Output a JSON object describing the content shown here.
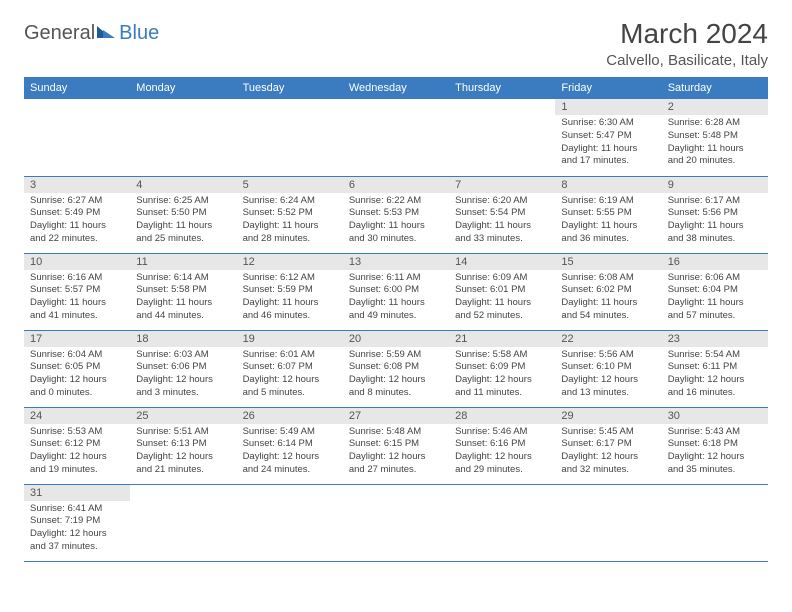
{
  "logo": {
    "text1": "General",
    "text2": "Blue"
  },
  "title": "March 2024",
  "subtitle": "Calvello, Basilicate, Italy",
  "day_headers": [
    "Sunday",
    "Monday",
    "Tuesday",
    "Wednesday",
    "Thursday",
    "Friday",
    "Saturday"
  ],
  "colors": {
    "header_bg": "#3b7bbf",
    "header_text": "#ffffff",
    "daynum_bg": "#e7e7e7",
    "cell_border": "#3b7bbf",
    "body_text": "#444444",
    "title_text": "#444444"
  },
  "weeks": [
    [
      null,
      null,
      null,
      null,
      null,
      {
        "n": "1",
        "sunrise": "Sunrise: 6:30 AM",
        "sunset": "Sunset: 5:47 PM",
        "daylight": "Daylight: 11 hours and 17 minutes."
      },
      {
        "n": "2",
        "sunrise": "Sunrise: 6:28 AM",
        "sunset": "Sunset: 5:48 PM",
        "daylight": "Daylight: 11 hours and 20 minutes."
      }
    ],
    [
      {
        "n": "3",
        "sunrise": "Sunrise: 6:27 AM",
        "sunset": "Sunset: 5:49 PM",
        "daylight": "Daylight: 11 hours and 22 minutes."
      },
      {
        "n": "4",
        "sunrise": "Sunrise: 6:25 AM",
        "sunset": "Sunset: 5:50 PM",
        "daylight": "Daylight: 11 hours and 25 minutes."
      },
      {
        "n": "5",
        "sunrise": "Sunrise: 6:24 AM",
        "sunset": "Sunset: 5:52 PM",
        "daylight": "Daylight: 11 hours and 28 minutes."
      },
      {
        "n": "6",
        "sunrise": "Sunrise: 6:22 AM",
        "sunset": "Sunset: 5:53 PM",
        "daylight": "Daylight: 11 hours and 30 minutes."
      },
      {
        "n": "7",
        "sunrise": "Sunrise: 6:20 AM",
        "sunset": "Sunset: 5:54 PM",
        "daylight": "Daylight: 11 hours and 33 minutes."
      },
      {
        "n": "8",
        "sunrise": "Sunrise: 6:19 AM",
        "sunset": "Sunset: 5:55 PM",
        "daylight": "Daylight: 11 hours and 36 minutes."
      },
      {
        "n": "9",
        "sunrise": "Sunrise: 6:17 AM",
        "sunset": "Sunset: 5:56 PM",
        "daylight": "Daylight: 11 hours and 38 minutes."
      }
    ],
    [
      {
        "n": "10",
        "sunrise": "Sunrise: 6:16 AM",
        "sunset": "Sunset: 5:57 PM",
        "daylight": "Daylight: 11 hours and 41 minutes."
      },
      {
        "n": "11",
        "sunrise": "Sunrise: 6:14 AM",
        "sunset": "Sunset: 5:58 PM",
        "daylight": "Daylight: 11 hours and 44 minutes."
      },
      {
        "n": "12",
        "sunrise": "Sunrise: 6:12 AM",
        "sunset": "Sunset: 5:59 PM",
        "daylight": "Daylight: 11 hours and 46 minutes."
      },
      {
        "n": "13",
        "sunrise": "Sunrise: 6:11 AM",
        "sunset": "Sunset: 6:00 PM",
        "daylight": "Daylight: 11 hours and 49 minutes."
      },
      {
        "n": "14",
        "sunrise": "Sunrise: 6:09 AM",
        "sunset": "Sunset: 6:01 PM",
        "daylight": "Daylight: 11 hours and 52 minutes."
      },
      {
        "n": "15",
        "sunrise": "Sunrise: 6:08 AM",
        "sunset": "Sunset: 6:02 PM",
        "daylight": "Daylight: 11 hours and 54 minutes."
      },
      {
        "n": "16",
        "sunrise": "Sunrise: 6:06 AM",
        "sunset": "Sunset: 6:04 PM",
        "daylight": "Daylight: 11 hours and 57 minutes."
      }
    ],
    [
      {
        "n": "17",
        "sunrise": "Sunrise: 6:04 AM",
        "sunset": "Sunset: 6:05 PM",
        "daylight": "Daylight: 12 hours and 0 minutes."
      },
      {
        "n": "18",
        "sunrise": "Sunrise: 6:03 AM",
        "sunset": "Sunset: 6:06 PM",
        "daylight": "Daylight: 12 hours and 3 minutes."
      },
      {
        "n": "19",
        "sunrise": "Sunrise: 6:01 AM",
        "sunset": "Sunset: 6:07 PM",
        "daylight": "Daylight: 12 hours and 5 minutes."
      },
      {
        "n": "20",
        "sunrise": "Sunrise: 5:59 AM",
        "sunset": "Sunset: 6:08 PM",
        "daylight": "Daylight: 12 hours and 8 minutes."
      },
      {
        "n": "21",
        "sunrise": "Sunrise: 5:58 AM",
        "sunset": "Sunset: 6:09 PM",
        "daylight": "Daylight: 12 hours and 11 minutes."
      },
      {
        "n": "22",
        "sunrise": "Sunrise: 5:56 AM",
        "sunset": "Sunset: 6:10 PM",
        "daylight": "Daylight: 12 hours and 13 minutes."
      },
      {
        "n": "23",
        "sunrise": "Sunrise: 5:54 AM",
        "sunset": "Sunset: 6:11 PM",
        "daylight": "Daylight: 12 hours and 16 minutes."
      }
    ],
    [
      {
        "n": "24",
        "sunrise": "Sunrise: 5:53 AM",
        "sunset": "Sunset: 6:12 PM",
        "daylight": "Daylight: 12 hours and 19 minutes."
      },
      {
        "n": "25",
        "sunrise": "Sunrise: 5:51 AM",
        "sunset": "Sunset: 6:13 PM",
        "daylight": "Daylight: 12 hours and 21 minutes."
      },
      {
        "n": "26",
        "sunrise": "Sunrise: 5:49 AM",
        "sunset": "Sunset: 6:14 PM",
        "daylight": "Daylight: 12 hours and 24 minutes."
      },
      {
        "n": "27",
        "sunrise": "Sunrise: 5:48 AM",
        "sunset": "Sunset: 6:15 PM",
        "daylight": "Daylight: 12 hours and 27 minutes."
      },
      {
        "n": "28",
        "sunrise": "Sunrise: 5:46 AM",
        "sunset": "Sunset: 6:16 PM",
        "daylight": "Daylight: 12 hours and 29 minutes."
      },
      {
        "n": "29",
        "sunrise": "Sunrise: 5:45 AM",
        "sunset": "Sunset: 6:17 PM",
        "daylight": "Daylight: 12 hours and 32 minutes."
      },
      {
        "n": "30",
        "sunrise": "Sunrise: 5:43 AM",
        "sunset": "Sunset: 6:18 PM",
        "daylight": "Daylight: 12 hours and 35 minutes."
      }
    ],
    [
      {
        "n": "31",
        "sunrise": "Sunrise: 6:41 AM",
        "sunset": "Sunset: 7:19 PM",
        "daylight": "Daylight: 12 hours and 37 minutes."
      },
      null,
      null,
      null,
      null,
      null,
      null
    ]
  ]
}
